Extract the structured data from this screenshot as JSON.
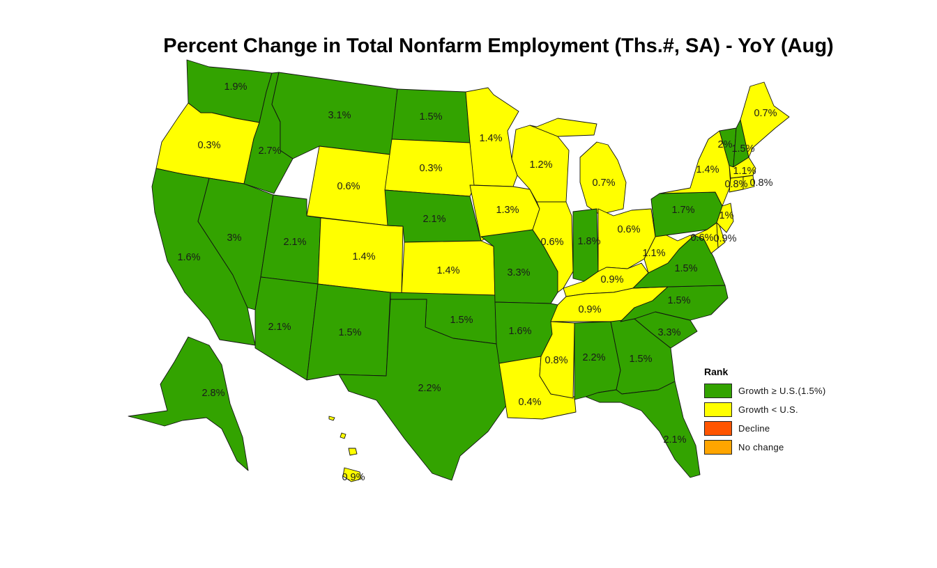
{
  "title": "Percent Change in Total Nonfarm Employment (Ths.#, SA) - YoY (Aug)",
  "colors": {
    "growth_above_us": "#33a300",
    "growth_below_us": "#ffff00",
    "decline": "#ff5500",
    "no_change": "#ffa500"
  },
  "legend": {
    "title": "Rank",
    "items": [
      {
        "label": "Growth ≥ U.S.(1.5%)",
        "color": "#33a300"
      },
      {
        "label": "Growth < U.S.",
        "color": "#ffff00"
      },
      {
        "label": "Decline",
        "color": "#ff5500"
      },
      {
        "label": "No change",
        "color": "#ffa500"
      }
    ]
  },
  "states": [
    {
      "id": "WA",
      "value": "1.9%",
      "rank": "above"
    },
    {
      "id": "OR",
      "value": "0.3%",
      "rank": "below"
    },
    {
      "id": "CA",
      "value": "1.6%",
      "rank": "above"
    },
    {
      "id": "NV",
      "value": "3%",
      "rank": "above"
    },
    {
      "id": "ID",
      "value": "2.7%",
      "rank": "above"
    },
    {
      "id": "MT",
      "value": "3.1%",
      "rank": "above"
    },
    {
      "id": "WY",
      "value": "0.6%",
      "rank": "below"
    },
    {
      "id": "UT",
      "value": "2.1%",
      "rank": "above"
    },
    {
      "id": "AZ",
      "value": "2.1%",
      "rank": "above"
    },
    {
      "id": "CO",
      "value": "1.4%",
      "rank": "below"
    },
    {
      "id": "NM",
      "value": "1.5%",
      "rank": "above"
    },
    {
      "id": "ND",
      "value": "1.5%",
      "rank": "above"
    },
    {
      "id": "SD",
      "value": "0.3%",
      "rank": "below"
    },
    {
      "id": "NE",
      "value": "2.1%",
      "rank": "above"
    },
    {
      "id": "KS",
      "value": "1.4%",
      "rank": "below"
    },
    {
      "id": "OK",
      "value": "1.5%",
      "rank": "above"
    },
    {
      "id": "TX",
      "value": "2.2%",
      "rank": "above"
    },
    {
      "id": "MN",
      "value": "1.4%",
      "rank": "below"
    },
    {
      "id": "IA",
      "value": "1.3%",
      "rank": "below"
    },
    {
      "id": "MO",
      "value": "3.3%",
      "rank": "above"
    },
    {
      "id": "AR",
      "value": "1.6%",
      "rank": "above"
    },
    {
      "id": "LA",
      "value": "0.4%",
      "rank": "below"
    },
    {
      "id": "WI",
      "value": "1.2%",
      "rank": "below"
    },
    {
      "id": "IL",
      "value": "0.6%",
      "rank": "below"
    },
    {
      "id": "MI",
      "value": "0.7%",
      "rank": "below"
    },
    {
      "id": "IN",
      "value": "1.8%",
      "rank": "above"
    },
    {
      "id": "OH",
      "value": "0.6%",
      "rank": "below"
    },
    {
      "id": "KY",
      "value": "0.9%",
      "rank": "below"
    },
    {
      "id": "TN",
      "value": "0.9%",
      "rank": "below"
    },
    {
      "id": "MS",
      "value": "0.8%",
      "rank": "below"
    },
    {
      "id": "AL",
      "value": "2.2%",
      "rank": "above"
    },
    {
      "id": "GA",
      "value": "1.5%",
      "rank": "above"
    },
    {
      "id": "FL",
      "value": "2.1%",
      "rank": "above"
    },
    {
      "id": "SC",
      "value": "3.3%",
      "rank": "above"
    },
    {
      "id": "NC",
      "value": "1.5%",
      "rank": "above"
    },
    {
      "id": "VA",
      "value": "1.5%",
      "rank": "above"
    },
    {
      "id": "WV",
      "value": "1.1%",
      "rank": "below"
    },
    {
      "id": "PA",
      "value": "1.7%",
      "rank": "above"
    },
    {
      "id": "NY",
      "value": "1.4%",
      "rank": "below"
    },
    {
      "id": "VT",
      "value": "2%",
      "rank": "above"
    },
    {
      "id": "NH",
      "value": "1.5%",
      "rank": "above"
    },
    {
      "id": "ME",
      "value": "0.7%",
      "rank": "below"
    },
    {
      "id": "MA",
      "value": "1.1%",
      "rank": "below"
    },
    {
      "id": "CT",
      "value": "0.8%",
      "rank": "below"
    },
    {
      "id": "RI",
      "value": "0.8%",
      "rank": "below"
    },
    {
      "id": "NJ",
      "value": "1%",
      "rank": "below"
    },
    {
      "id": "MD",
      "value": "0.6%",
      "rank": "below"
    },
    {
      "id": "DE",
      "value": "0.9%",
      "rank": "below"
    },
    {
      "id": "AK",
      "value": "2.8%",
      "rank": "above"
    },
    {
      "id": "HI",
      "value": "0.9%",
      "rank": "below"
    }
  ]
}
